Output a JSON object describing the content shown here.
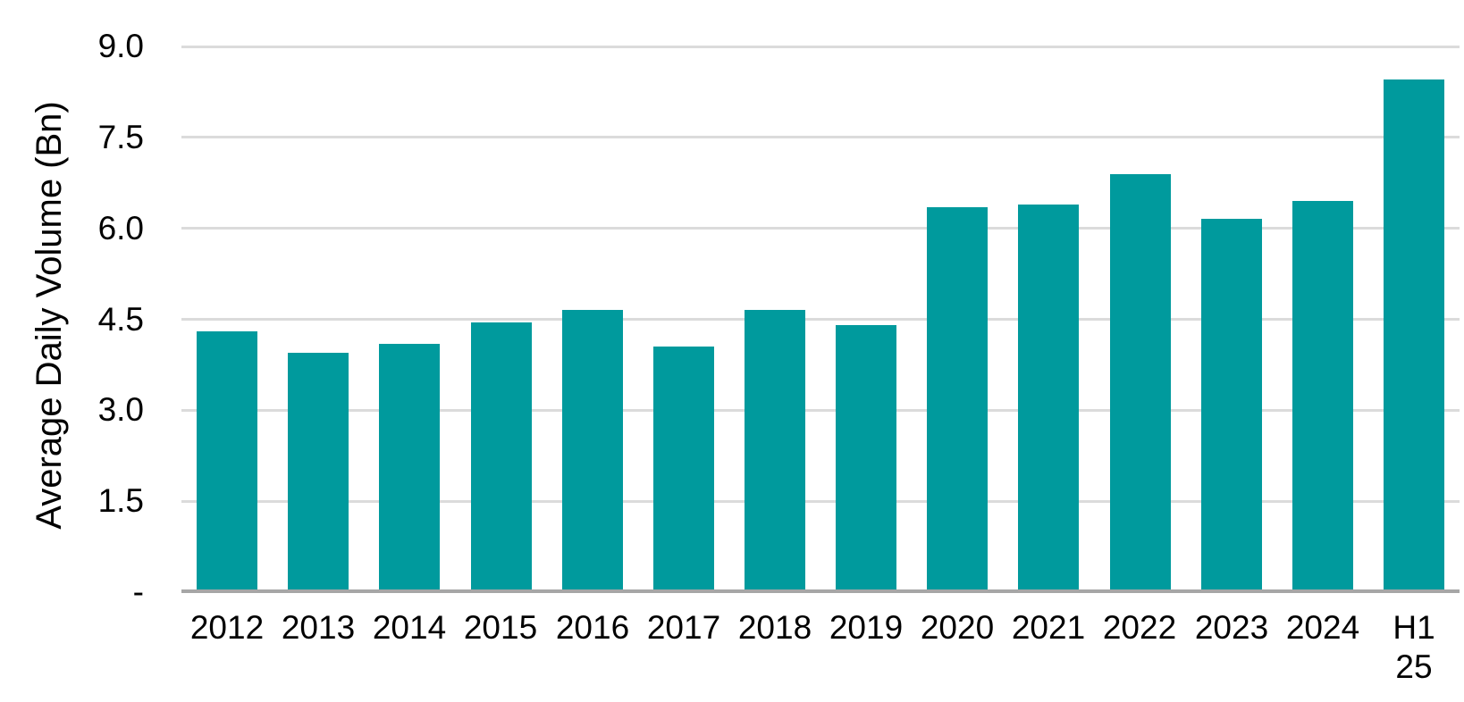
{
  "chart_data": {
    "type": "bar",
    "ylabel": "Average Daily Volume (Bn)",
    "categories": [
      "2012",
      "2013",
      "2014",
      "2015",
      "2016",
      "2017",
      "2018",
      "2019",
      "2020",
      "2021",
      "2022",
      "2023",
      "2024",
      "H1 25"
    ],
    "values": [
      4.3,
      3.95,
      4.1,
      4.45,
      4.65,
      4.05,
      4.65,
      4.4,
      6.35,
      6.4,
      6.9,
      6.15,
      6.45,
      8.45
    ],
    "ylim": [
      0,
      9
    ],
    "ytick_interval": 1.5,
    "yticks": [
      {
        "value": 0,
        "label": "-"
      },
      {
        "value": 1.5,
        "label": "1.5"
      },
      {
        "value": 3.0,
        "label": "3.0"
      },
      {
        "value": 4.5,
        "label": "4.5"
      },
      {
        "value": 6.0,
        "label": "6.0"
      },
      {
        "value": 7.5,
        "label": "7.5"
      },
      {
        "value": 9.0,
        "label": "9.0"
      }
    ],
    "grid": true,
    "legend_position": "none",
    "colors": {
      "bar": "#009A9D",
      "gridline": "#DBDBDB",
      "axis_line": "#A6A6A6",
      "text": "#000000",
      "background": "#FFFFFF"
    }
  }
}
